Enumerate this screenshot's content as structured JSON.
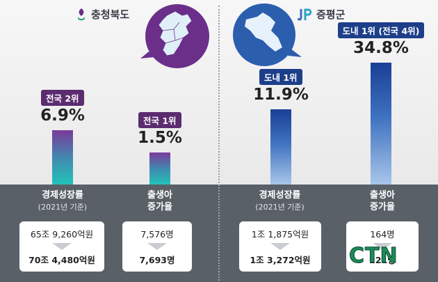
{
  "left": {
    "region": "충청북도",
    "colors": {
      "accent": "#5b2c6f",
      "bar_top": "#7a3a9c",
      "bar_bottom": "#22c2b8"
    }
  },
  "right": {
    "region": "증평군",
    "colors": {
      "accent": "#1d3f8a",
      "bar_top": "#1a3f96",
      "bar_bottom": "#a8c6ea"
    }
  },
  "categories": {
    "growth_main": "경제성장률",
    "growth_sub": "(2021년 기준)",
    "birth_line1": "출생아",
    "birth_line2": "증가율"
  },
  "watermark": "CTN",
  "chart_data": [
    {
      "type": "bar",
      "title": "충청북도",
      "categories": [
        "경제성장률",
        "출생아 증가율"
      ],
      "values": [
        6.9,
        1.5
      ],
      "value_labels": [
        "6.9%",
        "1.5%"
      ],
      "rank_badges": [
        "전국 2위",
        "전국 1위"
      ],
      "details": [
        {
          "before": "65조 9,260억원",
          "after": "70조 4,480억원"
        },
        {
          "before": "7,576명",
          "after": "7,693명"
        }
      ]
    },
    {
      "type": "bar",
      "title": "증평군",
      "categories": [
        "경제성장률",
        "출생아 증가율"
      ],
      "values": [
        11.9,
        34.8
      ],
      "value_labels": [
        "11.9%",
        "34.8%"
      ],
      "rank_badges": [
        "도내 1위",
        "도내 1위 (전국 4위)"
      ],
      "details": [
        {
          "before": "1조 1,875억원",
          "after": "1조 3,272억원"
        },
        {
          "before": "164명",
          "after": "221명"
        }
      ]
    }
  ]
}
